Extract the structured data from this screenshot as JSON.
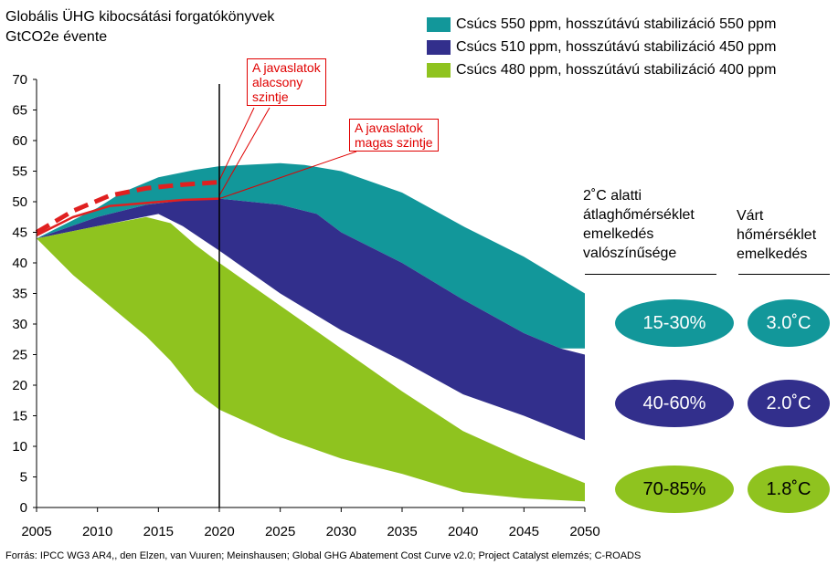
{
  "title": {
    "line1": "Globális ÜHG kibocsátási forgatókönyvek",
    "line2": "GtCO2e évente"
  },
  "legend": [
    {
      "label": "Csúcs 550 ppm, hosszútávú stabilizáció 550 ppm",
      "color": "#12979a"
    },
    {
      "label": "Csúcs 510 ppm, hosszútávú stabilizáció 450 ppm",
      "color": "#322f8c"
    },
    {
      "label": "Csúcs 480 ppm, hosszútávú stabilizáció 400 ppm",
      "color": "#8fc31f"
    }
  ],
  "callouts": {
    "low": {
      "line1": "A javaslatok",
      "line2": "alacsony",
      "line3": "szintje"
    },
    "high": {
      "line1": "A javaslatok",
      "line2": "magas szintje"
    }
  },
  "side": {
    "col1_header": [
      "2˚C alatti",
      "átlaghőmérséklet",
      "emelkedés",
      "valószínűsége"
    ],
    "col2_header": [
      "Várt",
      "hőmérséklet",
      "emelkedés"
    ],
    "rows": [
      {
        "probability": "15-30%",
        "temperature": "3.0˚C",
        "color": "#12979a",
        "text_color": "#ffffff"
      },
      {
        "probability": "40-60%",
        "temperature": "2.0˚C",
        "color": "#322f8c",
        "text_color": "#ffffff"
      },
      {
        "probability": "70-85%",
        "temperature": "1.8˚C",
        "color": "#8fc31f",
        "text_color": "#000000"
      }
    ]
  },
  "source": "Forrás: IPCC WG3 AR4,, den Elzen, van Vuuren; Meinshausen; Global GHG Abatement Cost Curve v2.0; Project Catalyst elemzés; C-ROADS",
  "chart_data": {
    "type": "area",
    "x_ticks": [
      2005,
      2010,
      2015,
      2020,
      2025,
      2030,
      2035,
      2040,
      2045,
      2050
    ],
    "y_ticks": [
      0,
      5,
      10,
      15,
      20,
      25,
      30,
      35,
      40,
      45,
      50,
      55,
      60,
      65,
      70
    ],
    "xlim": [
      2005,
      2050
    ],
    "ylim": [
      0,
      70
    ],
    "reference_line_x": 2020,
    "bands": [
      {
        "name": "Csúcs 550 ppm, hosszútávú stabilizáció 550 ppm",
        "color": "#12979a",
        "upper": [
          [
            2005,
            44
          ],
          [
            2010,
            49
          ],
          [
            2012,
            51.5
          ],
          [
            2015,
            54
          ],
          [
            2018,
            55.2
          ],
          [
            2020,
            55.8
          ],
          [
            2025,
            56.3
          ],
          [
            2027,
            56
          ],
          [
            2030,
            55
          ],
          [
            2035,
            51.5
          ],
          [
            2040,
            46
          ],
          [
            2045,
            41
          ],
          [
            2050,
            35
          ]
        ],
        "lower": [
          [
            2005,
            44
          ],
          [
            2010,
            47.5
          ],
          [
            2014,
            49.5
          ],
          [
            2017,
            50.2
          ],
          [
            2020,
            50.5
          ],
          [
            2025,
            49.5
          ],
          [
            2028,
            48
          ],
          [
            2030,
            45
          ],
          [
            2035,
            40
          ],
          [
            2040,
            34
          ],
          [
            2045,
            28.5
          ],
          [
            2048,
            26
          ],
          [
            2050,
            26
          ]
        ]
      },
      {
        "name": "Csúcs 510 ppm, hosszútávú stabilizáció 450 ppm",
        "color": "#322f8c",
        "upper": [
          [
            2005,
            44
          ],
          [
            2010,
            47.5
          ],
          [
            2014,
            49.5
          ],
          [
            2017,
            50.2
          ],
          [
            2020,
            50.5
          ],
          [
            2025,
            49.5
          ],
          [
            2028,
            48
          ],
          [
            2030,
            45
          ],
          [
            2035,
            40
          ],
          [
            2040,
            34
          ],
          [
            2045,
            28.5
          ],
          [
            2048,
            26
          ],
          [
            2050,
            25
          ]
        ],
        "lower": [
          [
            2005,
            44
          ],
          [
            2010,
            46
          ],
          [
            2015,
            48
          ],
          [
            2017,
            46
          ],
          [
            2020,
            42
          ],
          [
            2025,
            35
          ],
          [
            2030,
            29
          ],
          [
            2035,
            24
          ],
          [
            2040,
            18.5
          ],
          [
            2045,
            15
          ],
          [
            2050,
            11
          ]
        ]
      },
      {
        "name": "Csúcs 480 ppm, hosszútávú stabilizáció 400 ppm",
        "color": "#8fc31f",
        "upper": [
          [
            2005,
            44
          ],
          [
            2010,
            46
          ],
          [
            2014,
            47.5
          ],
          [
            2016,
            46.5
          ],
          [
            2018,
            43
          ],
          [
            2020,
            40
          ],
          [
            2025,
            33
          ],
          [
            2030,
            26
          ],
          [
            2035,
            19
          ],
          [
            2040,
            12.5
          ],
          [
            2045,
            8
          ],
          [
            2050,
            4
          ]
        ],
        "lower": [
          [
            2005,
            44
          ],
          [
            2008,
            38
          ],
          [
            2011,
            33
          ],
          [
            2014,
            28
          ],
          [
            2016,
            24
          ],
          [
            2018,
            19
          ],
          [
            2020,
            16
          ],
          [
            2025,
            11.5
          ],
          [
            2030,
            8
          ],
          [
            2035,
            5.5
          ],
          [
            2040,
            2.5
          ],
          [
            2045,
            1.5
          ],
          [
            2050,
            1
          ]
        ]
      }
    ],
    "pledge_lines": [
      {
        "style": "dashed",
        "color": "#e02020",
        "points": [
          [
            2005,
            45
          ],
          [
            2008,
            48.5
          ],
          [
            2011,
            51
          ],
          [
            2014,
            52.2
          ],
          [
            2017,
            52.8
          ],
          [
            2020,
            53.2
          ]
        ]
      },
      {
        "style": "solid",
        "color": "#e02020",
        "points": [
          [
            2005,
            44.5
          ],
          [
            2008,
            47.5
          ],
          [
            2011,
            49.3
          ],
          [
            2014,
            49.8
          ],
          [
            2017,
            50.3
          ],
          [
            2020,
            50.5
          ]
        ]
      }
    ]
  }
}
